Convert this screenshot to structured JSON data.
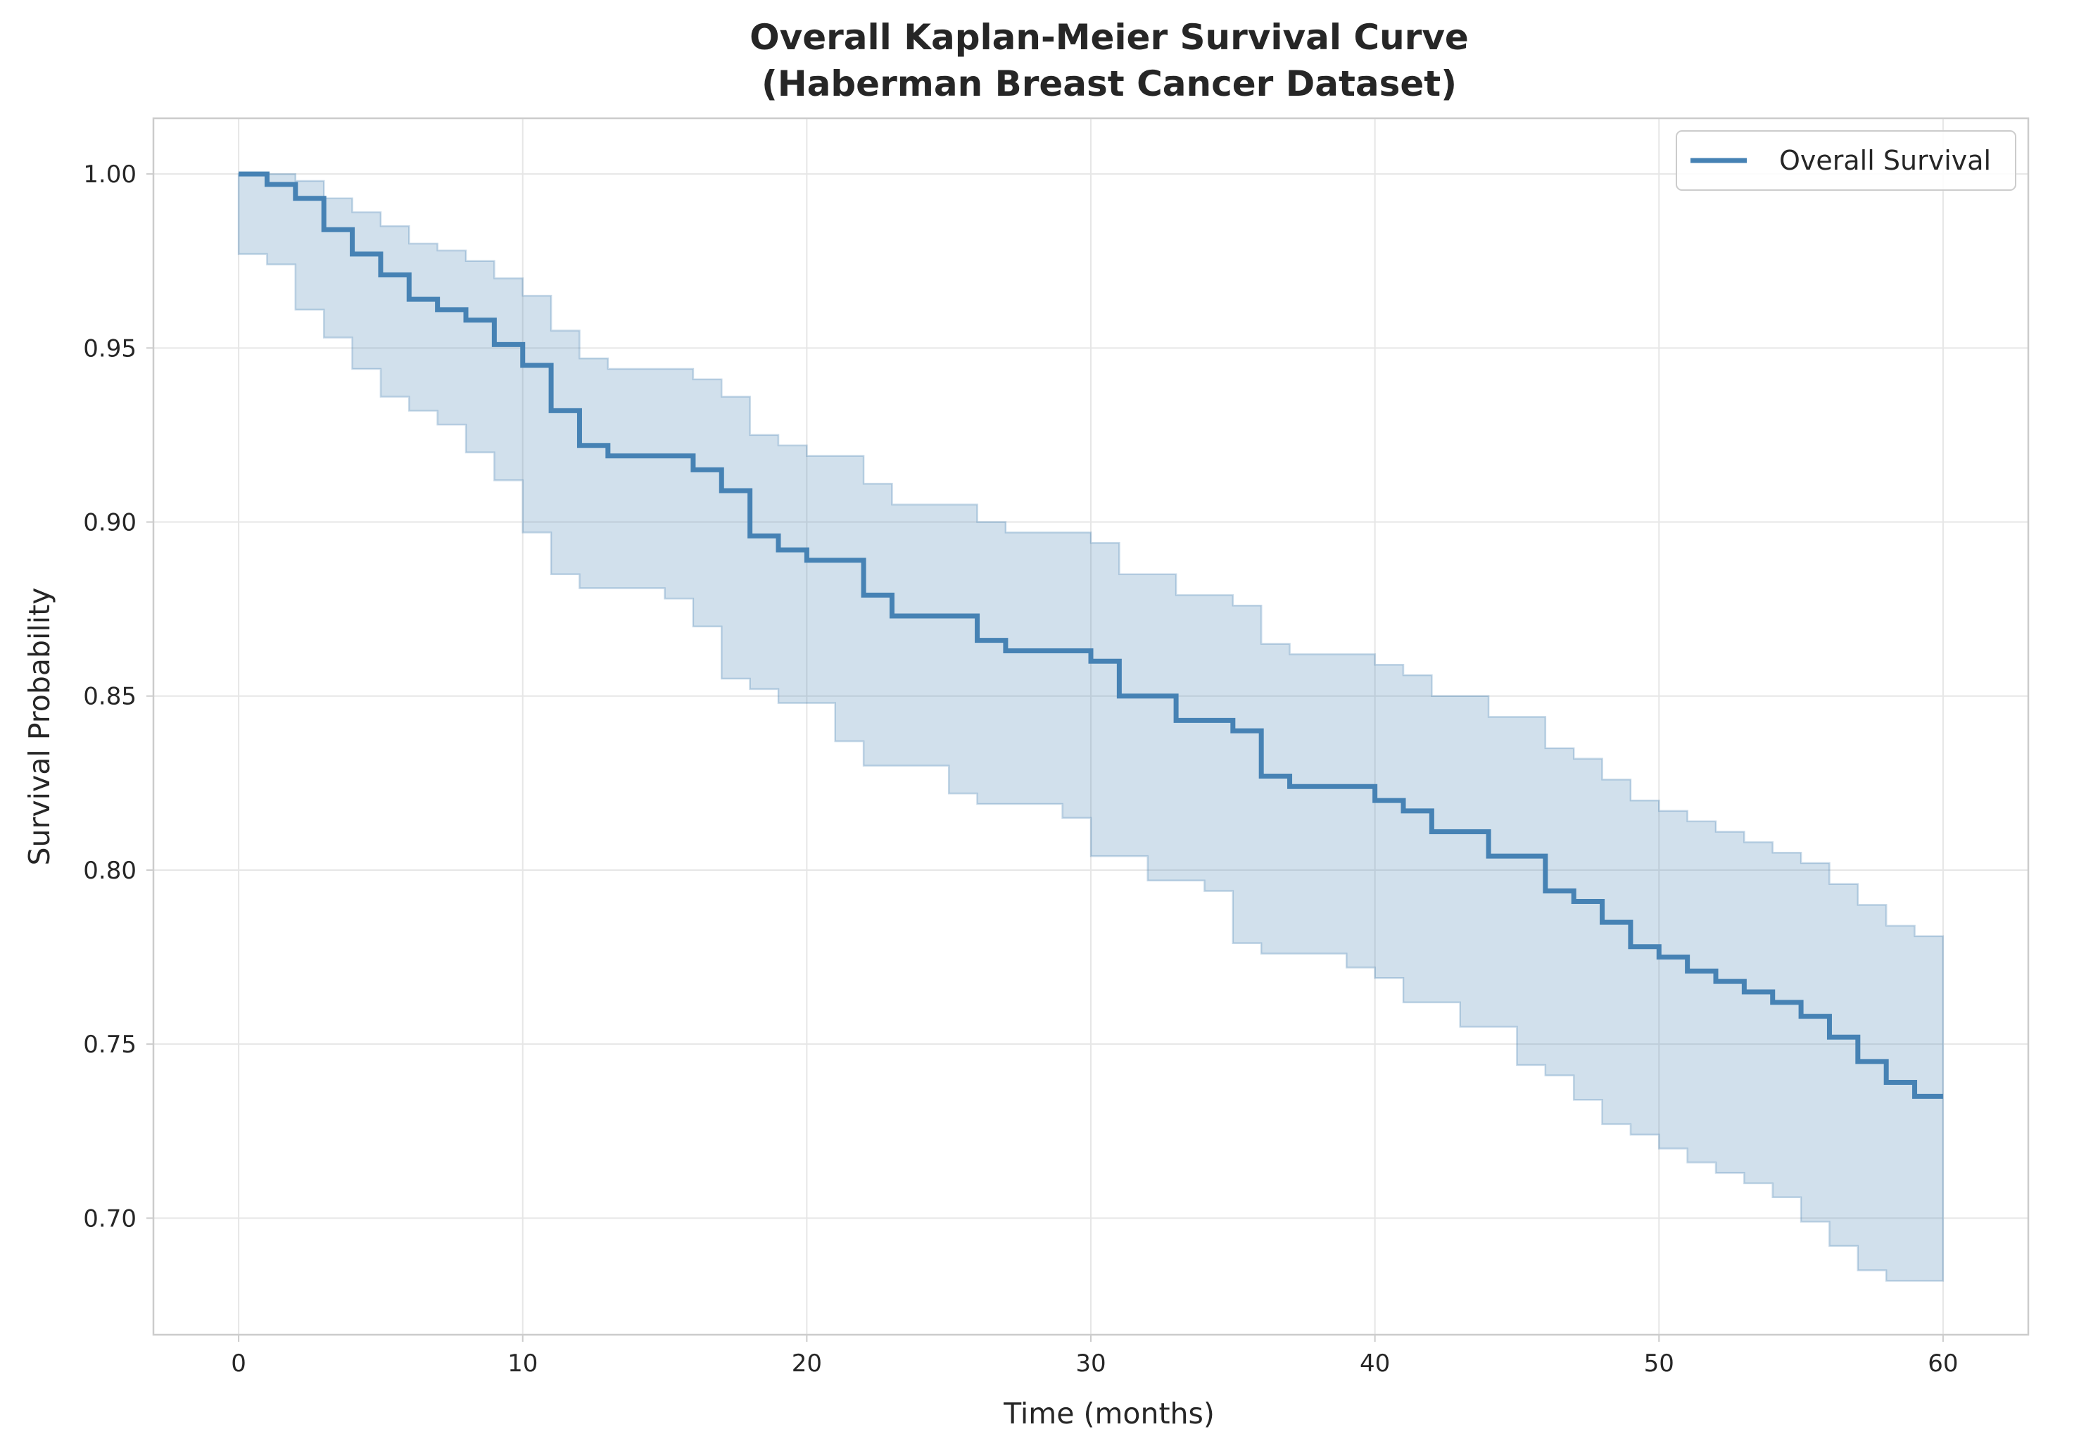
{
  "chart_data": {
    "type": "line",
    "title_line1": "Overall Kaplan-Meier Survival Curve",
    "title_line2": "(Haberman Breast Cancer Dataset)",
    "xlabel": "Time (months)",
    "ylabel": "Survival Probability",
    "xlim": [
      -3,
      63
    ],
    "ylim": [
      0.6665,
      1.016
    ],
    "x_ticks": [
      0,
      10,
      20,
      30,
      40,
      50,
      60
    ],
    "y_ticks": [
      0.7,
      0.75,
      0.8,
      0.85,
      0.9,
      0.95,
      1.0
    ],
    "x_tick_labels": [
      "0",
      "10",
      "20",
      "30",
      "40",
      "50",
      "60"
    ],
    "y_tick_labels": [
      "0.70",
      "0.75",
      "0.80",
      "0.85",
      "0.90",
      "0.95",
      "1.00"
    ],
    "grid": true,
    "legend_position": "top-right",
    "series": [
      {
        "name": "Overall Survival",
        "color": "#4682b4",
        "step": "post",
        "x": [
          0,
          1,
          2,
          3,
          4,
          5,
          6,
          7,
          8,
          9,
          10,
          11,
          12,
          13,
          14,
          15,
          16,
          17,
          18,
          19,
          20,
          21,
          22,
          23,
          24,
          25,
          26,
          27,
          28,
          29,
          30,
          31,
          32,
          33,
          34,
          35,
          36,
          37,
          38,
          39,
          40,
          41,
          42,
          43,
          44,
          45,
          46,
          47,
          48,
          49,
          50,
          51,
          52,
          53,
          54,
          55,
          56,
          57,
          58,
          59,
          60
        ],
        "y": [
          1.0,
          0.997,
          0.993,
          0.984,
          0.977,
          0.971,
          0.964,
          0.961,
          0.958,
          0.951,
          0.945,
          0.932,
          0.922,
          0.919,
          0.919,
          0.919,
          0.915,
          0.909,
          0.896,
          0.892,
          0.889,
          0.889,
          0.879,
          0.873,
          0.873,
          0.873,
          0.866,
          0.863,
          0.863,
          0.863,
          0.86,
          0.85,
          0.85,
          0.843,
          0.843,
          0.84,
          0.827,
          0.824,
          0.824,
          0.824,
          0.82,
          0.817,
          0.811,
          0.811,
          0.804,
          0.804,
          0.794,
          0.791,
          0.785,
          0.778,
          0.775,
          0.771,
          0.768,
          0.765,
          0.762,
          0.758,
          0.752,
          0.745,
          0.739,
          0.735,
          0.735
        ],
        "ci_lower": [
          1.0,
          0.977,
          0.974,
          0.961,
          0.953,
          0.944,
          0.936,
          0.932,
          0.928,
          0.92,
          0.912,
          0.897,
          0.885,
          0.881,
          0.881,
          0.881,
          0.878,
          0.87,
          0.855,
          0.852,
          0.848,
          0.848,
          0.837,
          0.83,
          0.83,
          0.83,
          0.822,
          0.819,
          0.819,
          0.819,
          0.815,
          0.804,
          0.804,
          0.797,
          0.797,
          0.794,
          0.779,
          0.776,
          0.776,
          0.776,
          0.772,
          0.769,
          0.762,
          0.762,
          0.755,
          0.755,
          0.744,
          0.741,
          0.734,
          0.727,
          0.724,
          0.72,
          0.716,
          0.713,
          0.71,
          0.706,
          0.699,
          0.692,
          0.685,
          0.682,
          0.682
        ],
        "ci_upper": [
          1.0,
          1.0,
          0.998,
          0.993,
          0.989,
          0.985,
          0.98,
          0.978,
          0.975,
          0.97,
          0.965,
          0.955,
          0.947,
          0.944,
          0.944,
          0.944,
          0.941,
          0.936,
          0.925,
          0.922,
          0.919,
          0.919,
          0.911,
          0.905,
          0.905,
          0.905,
          0.9,
          0.897,
          0.897,
          0.897,
          0.894,
          0.885,
          0.885,
          0.879,
          0.879,
          0.876,
          0.865,
          0.862,
          0.862,
          0.862,
          0.859,
          0.856,
          0.85,
          0.85,
          0.844,
          0.844,
          0.835,
          0.832,
          0.826,
          0.82,
          0.817,
          0.814,
          0.811,
          0.808,
          0.805,
          0.802,
          0.796,
          0.79,
          0.784,
          0.781,
          0.781
        ]
      }
    ],
    "ci_color": "#4682b4"
  }
}
